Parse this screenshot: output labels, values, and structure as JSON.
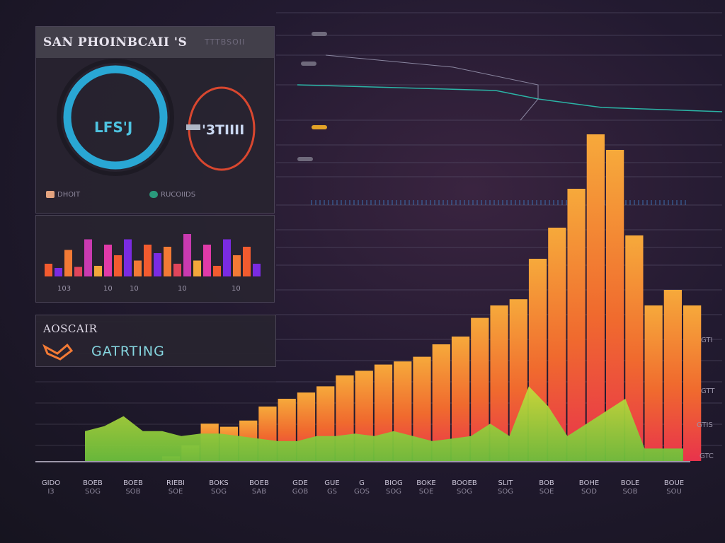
{
  "top_panel": {
    "title": "SAN PHOINBCAII 'S",
    "subtitle": "TTTBSOII",
    "ring_left_text": "LFS'J",
    "ring_right_text": "'3TIIII",
    "legend": [
      {
        "label": "DHOIT",
        "color": "#e3a37f"
      },
      {
        "label": "RUCOIIDS",
        "color": "#2a9a7c"
      }
    ],
    "ring_left_color": "#29a7d4",
    "ring_right_color": "#d9472f"
  },
  "bars_panel": {
    "tick_labels": [
      "103",
      "10",
      "10",
      "10",
      "10"
    ]
  },
  "label_panel": {
    "label": "AOSCAIR",
    "value": "GATRTING"
  },
  "right_side": {
    "labels": [
      "GTI",
      "GTT",
      "GTIS",
      "GTC"
    ]
  },
  "chart_data": {
    "type": "area",
    "title": "",
    "xlabel": "",
    "ylabel": "",
    "x_labels": [
      {
        "top": "GIDO",
        "bottom": "I3"
      },
      {
        "top": "BOEB",
        "bottom": "SOG"
      },
      {
        "top": "BOEB",
        "bottom": "SOB"
      },
      {
        "top": "RIEBI",
        "bottom": "SOE"
      },
      {
        "top": "BOKS",
        "bottom": "SOG"
      },
      {
        "top": "BOEB",
        "bottom": "SAB"
      },
      {
        "top": "GDE",
        "bottom": "GOB"
      },
      {
        "top": "GUE",
        "bottom": "GS"
      },
      {
        "top": "G",
        "bottom": "GOS"
      },
      {
        "top": "BIOG",
        "bottom": "SOG"
      },
      {
        "top": "BOKE",
        "bottom": "SOE"
      },
      {
        "top": "BOOEB",
        "bottom": "SOG"
      },
      {
        "top": "SLIT",
        "bottom": "SOG"
      },
      {
        "top": "BOB",
        "bottom": "SOE"
      },
      {
        "top": "BOHE",
        "bottom": "SOD"
      },
      {
        "top": "BOLE",
        "bottom": "SOB"
      },
      {
        "top": "BOUE",
        "bottom": "SOU"
      }
    ],
    "series": [
      {
        "values": [
          0,
          0,
          0,
          0,
          3,
          10,
          24,
          22,
          26,
          35,
          40,
          44,
          48,
          55,
          58,
          62,
          64,
          67,
          75,
          80,
          92,
          100,
          104,
          130,
          150,
          175,
          210,
          200,
          145,
          100,
          110,
          100
        ]
      },
      {
        "values": [
          12,
          14,
          18,
          12,
          12,
          10,
          11,
          11,
          10,
          9,
          8,
          8,
          10,
          10,
          11,
          10,
          12,
          10,
          8,
          9,
          10,
          15,
          10,
          30,
          22,
          10,
          15,
          20,
          25,
          5,
          5,
          5
        ]
      }
    ],
    "bars": [
      12,
      8,
      25,
      9,
      35,
      10,
      30,
      20,
      35,
      15,
      30,
      22,
      28,
      12,
      40,
      15,
      30,
      10,
      35,
      20,
      28,
      12
    ],
    "grid": true,
    "colors": {
      "area_top": "#f4a83a",
      "area_mid": "#f2562e",
      "area_low": "#e23b52",
      "green": "#a7d63a",
      "green_dark": "#5cb73a",
      "grid": "#5c5670"
    }
  }
}
